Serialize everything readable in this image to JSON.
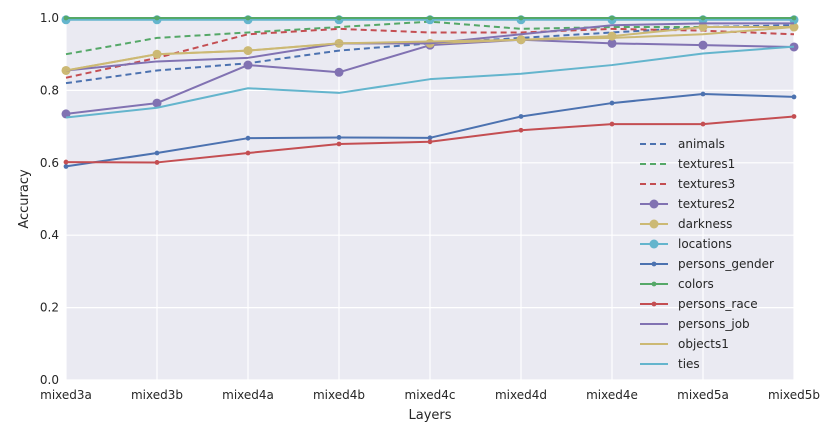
{
  "chart_data": {
    "type": "line",
    "title": "",
    "xlabel": "Layers",
    "ylabel": "Accuracy",
    "ylim": [
      0.0,
      1.0
    ],
    "yticks": [
      "0.0",
      "0.2",
      "0.4",
      "0.6",
      "0.8",
      "1.0"
    ],
    "categories": [
      "mixed3a",
      "mixed3b",
      "mixed4a",
      "mixed4b",
      "mixed4c",
      "mixed4d",
      "mixed4e",
      "mixed5a",
      "mixed5b"
    ],
    "grid": true,
    "legend_position": "lower-right",
    "background_color": "#eaeaf2",
    "series": [
      {
        "name": "animals",
        "color": "#4c72b0",
        "style": "dashed",
        "marker": "none",
        "values": [
          0.82,
          0.855,
          0.875,
          0.91,
          0.93,
          0.945,
          0.96,
          0.975,
          0.98
        ]
      },
      {
        "name": "textures1",
        "color": "#55a868",
        "style": "dashed",
        "marker": "none",
        "values": [
          0.9,
          0.945,
          0.96,
          0.975,
          0.99,
          0.97,
          0.975,
          0.975,
          0.975
        ]
      },
      {
        "name": "textures3",
        "color": "#c44e52",
        "style": "dashed",
        "marker": "none",
        "values": [
          0.835,
          0.89,
          0.955,
          0.97,
          0.96,
          0.96,
          0.97,
          0.965,
          0.955
        ]
      },
      {
        "name": "textures2",
        "color": "#8172b2",
        "style": "solid",
        "marker": "circle",
        "values": [
          0.735,
          0.765,
          0.87,
          0.85,
          0.925,
          0.94,
          0.93,
          0.925,
          0.92
        ]
      },
      {
        "name": "darkness",
        "color": "#ccb974",
        "style": "solid",
        "marker": "circle",
        "values": [
          0.855,
          0.9,
          0.91,
          0.93,
          0.93,
          0.94,
          0.95,
          0.975,
          0.975
        ]
      },
      {
        "name": "locations",
        "color": "#64b5cd",
        "style": "solid",
        "marker": "circle",
        "values": [
          0.995,
          0.995,
          0.995,
          0.995,
          0.995,
          0.995,
          0.995,
          0.995,
          0.995
        ]
      },
      {
        "name": "persons_gender",
        "color": "#4c72b0",
        "style": "solid",
        "marker": "dot",
        "values": [
          0.59,
          0.627,
          0.668,
          0.67,
          0.669,
          0.728,
          0.765,
          0.79,
          0.782
        ]
      },
      {
        "name": "colors",
        "color": "#55a868",
        "style": "solid",
        "marker": "dot",
        "values": [
          1.0,
          1.0,
          1.0,
          1.0,
          1.0,
          1.0,
          1.0,
          1.0,
          1.0
        ]
      },
      {
        "name": "persons_race",
        "color": "#c44e52",
        "style": "solid",
        "marker": "dot",
        "values": [
          0.602,
          0.601,
          0.627,
          0.652,
          0.658,
          0.69,
          0.707,
          0.707,
          0.728
        ]
      },
      {
        "name": "persons_job",
        "color": "#8172b2",
        "style": "solid",
        "marker": "none",
        "values": [
          0.855,
          0.88,
          0.89,
          0.93,
          0.93,
          0.955,
          0.98,
          0.985,
          0.985
        ]
      },
      {
        "name": "objects1",
        "color": "#ccb974",
        "style": "solid",
        "marker": "none",
        "values": [
          0.855,
          0.9,
          0.91,
          0.93,
          0.935,
          0.94,
          0.945,
          0.955,
          0.975
        ]
      },
      {
        "name": "ties",
        "color": "#64b5cd",
        "style": "solid",
        "marker": "none",
        "values": [
          0.725,
          0.752,
          0.806,
          0.793,
          0.831,
          0.846,
          0.87,
          0.902,
          0.921
        ]
      }
    ]
  }
}
